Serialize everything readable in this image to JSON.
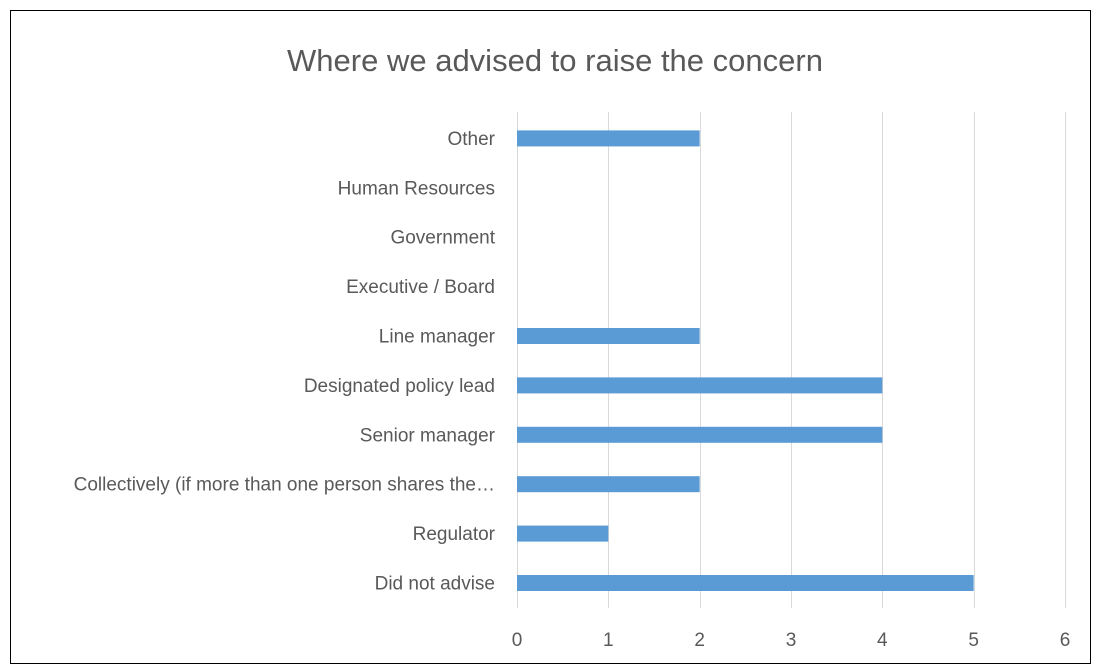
{
  "chart_data": {
    "type": "bar",
    "orientation": "horizontal",
    "title": "Where we advised to raise the concern",
    "categories": [
      "Did not advise",
      "Regulator",
      "Collectively (if more than one person shares the…",
      "Senior manager",
      "Designated policy lead",
      "Line manager",
      "Executive / Board",
      "Government",
      "Human Resources",
      "Other"
    ],
    "values": [
      5,
      1,
      2,
      4,
      4,
      2,
      0,
      0,
      0,
      2
    ],
    "xlim": [
      0,
      6
    ],
    "xticks": [
      "0",
      "1",
      "2",
      "3",
      "4",
      "5",
      "6"
    ],
    "grid": true,
    "bar_color": "#5b9bd5",
    "legend": "none"
  }
}
